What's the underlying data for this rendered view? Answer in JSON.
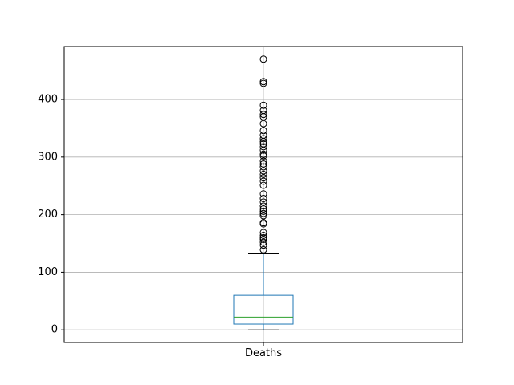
{
  "chart_data": {
    "type": "box",
    "title": "",
    "xlabel": "",
    "ylabel": "",
    "categories": [
      "Deaths"
    ],
    "ylim": [
      -22,
      492
    ],
    "yticks": [
      0,
      100,
      200,
      300,
      400
    ],
    "grid": true,
    "boxes": [
      {
        "name": "Deaths",
        "whislo": 0,
        "q1": 10,
        "median": 22,
        "q3": 60,
        "whishi": 132,
        "fliers": [
          139,
          147,
          152,
          157,
          160,
          164,
          169,
          184,
          186,
          198,
          202,
          206,
          210,
          215,
          222,
          228,
          236,
          251,
          258,
          264,
          270,
          276,
          283,
          288,
          293,
          302,
          305,
          312,
          318,
          323,
          327,
          332,
          338,
          346,
          358,
          370,
          374,
          381,
          390,
          428,
          431,
          470
        ]
      }
    ],
    "colors": {
      "box": "#1f77b4",
      "median": "#2ca02c",
      "whisker": "#000000",
      "flier": "#000000",
      "grid": "#b0b0b0",
      "axes": "#000000"
    }
  }
}
